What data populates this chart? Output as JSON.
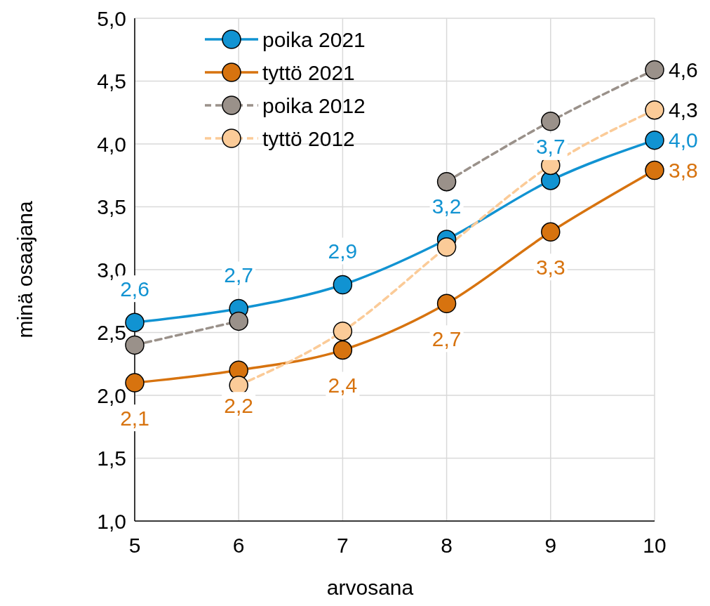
{
  "chart_data": {
    "type": "line",
    "xlabel": "arvosana",
    "ylabel": "minä osaajana",
    "x": [
      5,
      6,
      7,
      8,
      9,
      10
    ],
    "xlim": [
      5,
      10
    ],
    "xticks": [
      5,
      6,
      7,
      8,
      9,
      10
    ],
    "ylim": [
      1,
      5
    ],
    "yticks": [
      {
        "value": 1,
        "label": "1,0"
      },
      {
        "value": 1.5,
        "label": "1,5"
      },
      {
        "value": 2,
        "label": "2,0"
      },
      {
        "value": 2.5,
        "label": "2,5"
      },
      {
        "value": 3,
        "label": "3,0"
      },
      {
        "value": 3.5,
        "label": "3,5"
      },
      {
        "value": 4,
        "label": "4,0"
      },
      {
        "value": 4.5,
        "label": "4,5"
      },
      {
        "value": 5,
        "label": "5,0"
      }
    ],
    "grid": true,
    "legend": "top left",
    "marker": "circle",
    "series": [
      {
        "name": "poika 2021",
        "color": "#1193d2",
        "line_style": "solid",
        "values": [
          2.58,
          2.69,
          2.88,
          3.24,
          3.71,
          4.03
        ],
        "value_labels": [
          "2,6",
          "2,7",
          "2,9",
          "3,2",
          "3,7",
          "4,0"
        ]
      },
      {
        "name": "tyttö 2021",
        "color": "#d7730f",
        "line_style": "solid",
        "values": [
          2.1,
          2.2,
          2.36,
          2.73,
          3.3,
          3.79
        ],
        "value_labels": [
          "2,1",
          "2,2",
          "2,4",
          "2,7",
          "3,3",
          "3,8"
        ]
      },
      {
        "name": "poika 2012",
        "color": "#9a918a",
        "line_style": "dashed",
        "values": [
          2.4,
          2.59,
          null,
          3.7,
          4.18,
          4.59
        ],
        "value_labels": [
          null,
          null,
          null,
          null,
          null,
          "4,6"
        ]
      },
      {
        "name": "tyttö 2012",
        "color": "#fbcb98",
        "line_style": "dashed",
        "values": [
          null,
          2.08,
          2.51,
          3.18,
          3.83,
          4.27
        ],
        "value_labels": [
          null,
          null,
          null,
          null,
          null,
          "4,3"
        ]
      }
    ]
  }
}
